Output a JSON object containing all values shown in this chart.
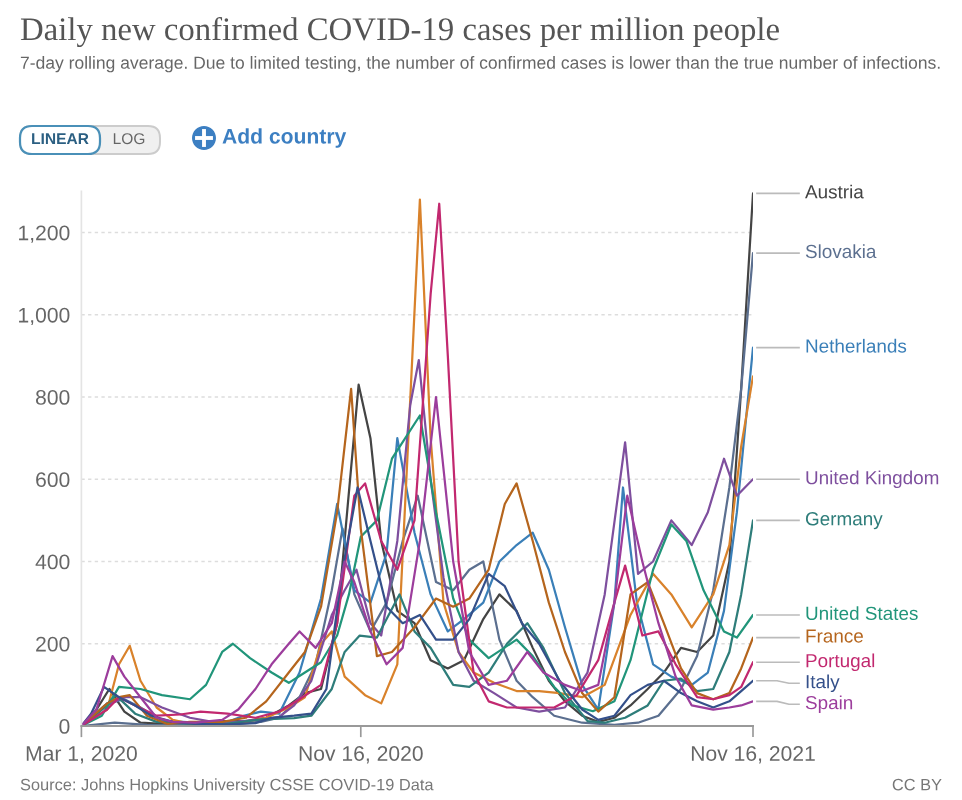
{
  "chart_data": {
    "type": "line",
    "title": "Daily new confirmed COVID-19 cases per million people",
    "subtitle": "7-day rolling average. Due to limited testing, the number of confirmed cases is lower than the true number of infections.",
    "annotations": [
      "LINEAR",
      "LOG",
      "Add country",
      "Source: Johns Hopkins University CSSE COVID-19 Data",
      "CC BY"
    ],
    "xlim": [
      "2020-03-01",
      "2021-11-16"
    ],
    "xticks": [
      {
        "value": "2020-03-01",
        "label": "Mar 1, 2020"
      },
      {
        "value": "2020-11-16",
        "label": "Nov 16, 2020"
      },
      {
        "value": "2021-11-16",
        "label": "Nov 16, 2021"
      }
    ],
    "ylim": [
      0,
      1300
    ],
    "yticks": [
      0,
      200,
      400,
      600,
      800,
      {
        "value": 1000,
        "label": "1,000"
      },
      {
        "value": 1200,
        "label": "1,200"
      }
    ],
    "grid": "y",
    "series": [
      {
        "name": "Austria",
        "color": "#444444",
        "x": [
          "2020-03-01",
          "2020-03-15",
          "2020-03-27",
          "2020-04-10",
          "2020-04-25",
          "2020-05-15",
          "2020-06-15",
          "2020-07-10",
          "2020-08-01",
          "2020-08-20",
          "2020-09-10",
          "2020-09-25",
          "2020-10-10",
          "2020-10-25",
          "2020-11-05",
          "2020-11-14",
          "2020-11-25",
          "2020-12-05",
          "2020-12-20",
          "2021-01-05",
          "2021-01-20",
          "2021-02-05",
          "2021-02-20",
          "2021-03-10",
          "2021-03-25",
          "2021-04-10",
          "2021-04-25",
          "2021-05-10",
          "2021-05-25",
          "2021-06-10",
          "2021-06-25",
          "2021-07-10",
          "2021-07-25",
          "2021-08-10",
          "2021-08-25",
          "2021-09-10",
          "2021-09-25",
          "2021-10-10",
          "2021-10-25",
          "2021-11-05",
          "2021-11-16"
        ],
        "values": [
          0,
          40,
          90,
          35,
          8,
          5,
          4,
          12,
          12,
          20,
          50,
          80,
          90,
          250,
          570,
          830,
          700,
          450,
          280,
          250,
          160,
          140,
          160,
          260,
          320,
          280,
          190,
          110,
          60,
          25,
          10,
          20,
          50,
          90,
          130,
          190,
          180,
          220,
          400,
          820,
          1295
        ]
      },
      {
        "name": "Slovakia",
        "color": "#5b6f8f",
        "x": [
          "2020-03-01",
          "2020-04-01",
          "2020-05-01",
          "2020-06-15",
          "2020-07-15",
          "2020-08-15",
          "2020-09-01",
          "2020-09-20",
          "2020-10-05",
          "2020-10-20",
          "2020-10-30",
          "2020-11-10",
          "2020-11-25",
          "2020-12-10",
          "2020-12-25",
          "2021-01-08",
          "2021-01-25",
          "2021-02-10",
          "2021-02-25",
          "2021-03-10",
          "2021-03-25",
          "2021-04-10",
          "2021-04-25",
          "2021-05-15",
          "2021-06-10",
          "2021-07-10",
          "2021-08-01",
          "2021-08-20",
          "2021-09-10",
          "2021-09-25",
          "2021-10-10",
          "2021-10-25",
          "2021-11-05",
          "2021-11-16"
        ],
        "values": [
          0,
          8,
          3,
          2,
          3,
          10,
          20,
          70,
          150,
          330,
          480,
          320,
          230,
          300,
          450,
          560,
          350,
          330,
          380,
          400,
          210,
          110,
          70,
          25,
          8,
          3,
          8,
          25,
          90,
          170,
          330,
          580,
          820,
          1150
        ]
      },
      {
        "name": "Netherlands",
        "color": "#3a7fb8",
        "x": [
          "2020-03-01",
          "2020-03-25",
          "2020-04-10",
          "2020-04-25",
          "2020-05-15",
          "2020-06-15",
          "2020-07-10",
          "2020-07-30",
          "2020-08-15",
          "2020-09-01",
          "2020-09-20",
          "2020-10-10",
          "2020-10-25",
          "2020-11-10",
          "2020-11-25",
          "2020-12-10",
          "2020-12-20",
          "2021-01-05",
          "2021-01-20",
          "2021-02-05",
          "2021-02-20",
          "2021-03-10",
          "2021-03-25",
          "2021-04-10",
          "2021-04-25",
          "2021-05-10",
          "2021-05-25",
          "2021-06-10",
          "2021-06-25",
          "2021-07-10",
          "2021-07-18",
          "2021-07-31",
          "2021-08-15",
          "2021-09-01",
          "2021-09-20",
          "2021-10-05",
          "2021-10-20",
          "2021-11-01",
          "2021-11-16"
        ],
        "values": [
          0,
          55,
          65,
          45,
          13,
          8,
          5,
          25,
          35,
          30,
          130,
          310,
          540,
          330,
          300,
          420,
          700,
          470,
          320,
          230,
          260,
          300,
          400,
          440,
          470,
          380,
          240,
          100,
          40,
          300,
          580,
          300,
          150,
          120,
          100,
          130,
          280,
          520,
          920
        ]
      },
      {
        "color": "#d9822b",
        "x": [
          "2020-03-01",
          "2020-03-25",
          "2020-04-05",
          "2020-04-15",
          "2020-04-25",
          "2020-05-10",
          "2020-05-25",
          "2020-06-15",
          "2020-07-10",
          "2020-08-01",
          "2020-08-20",
          "2020-09-10",
          "2020-09-25",
          "2020-10-10",
          "2020-10-20",
          "2020-11-01",
          "2020-11-20",
          "2020-12-05",
          "2020-12-20",
          "2021-01-03",
          "2021-01-10",
          "2021-01-20",
          "2021-02-01",
          "2021-02-15",
          "2021-03-01",
          "2021-03-20",
          "2021-04-10",
          "2021-05-01",
          "2021-05-20",
          "2021-06-10",
          "2021-07-01",
          "2021-07-25",
          "2021-08-15",
          "2021-09-01",
          "2021-09-20",
          "2021-10-10",
          "2021-10-25",
          "2021-11-05",
          "2021-11-16"
        ],
        "values": [
          0,
          40,
          150,
          195,
          110,
          45,
          15,
          3,
          4,
          10,
          20,
          45,
          70,
          200,
          230,
          120,
          75,
          55,
          150,
          900,
          1280,
          700,
          300,
          180,
          130,
          105,
          85,
          85,
          80,
          70,
          100,
          270,
          370,
          320,
          240,
          320,
          440,
          680,
          850
        ]
      },
      {
        "name": "United Kingdom",
        "color": "#7e4f9e",
        "x": [
          "2020-03-01",
          "2020-03-25",
          "2020-04-10",
          "2020-04-25",
          "2020-05-15",
          "2020-06-10",
          "2020-07-01",
          "2020-07-25",
          "2020-08-15",
          "2020-09-01",
          "2020-09-15",
          "2020-10-01",
          "2020-10-20",
          "2020-11-01",
          "2020-11-12",
          "2020-11-25",
          "2020-12-05",
          "2020-12-20",
          "2021-01-01",
          "2021-01-09",
          "2021-01-20",
          "2021-02-01",
          "2021-02-15",
          "2021-03-01",
          "2021-03-20",
          "2021-04-10",
          "2021-05-01",
          "2021-05-25",
          "2021-06-15",
          "2021-07-01",
          "2021-07-20",
          "2021-08-01",
          "2021-08-15",
          "2021-09-01",
          "2021-09-20",
          "2021-10-05",
          "2021-10-20",
          "2021-11-01",
          "2021-11-16"
        ],
        "values": [
          0,
          50,
          70,
          70,
          45,
          20,
          10,
          11,
          15,
          22,
          50,
          110,
          270,
          330,
          380,
          250,
          220,
          450,
          780,
          890,
          600,
          360,
          180,
          110,
          80,
          45,
          35,
          45,
          130,
          320,
          690,
          370,
          400,
          500,
          440,
          520,
          650,
          560,
          600
        ]
      },
      {
        "name": "Germany",
        "color": "#2e7d7a",
        "x": [
          "2020-03-01",
          "2020-03-20",
          "2020-04-02",
          "2020-04-20",
          "2020-05-10",
          "2020-06-15",
          "2020-07-15",
          "2020-08-15",
          "2020-09-15",
          "2020-10-01",
          "2020-10-20",
          "2020-11-01",
          "2020-11-15",
          "2020-12-01",
          "2020-12-22",
          "2021-01-05",
          "2021-01-20",
          "2021-02-10",
          "2021-02-25",
          "2021-03-15",
          "2021-04-01",
          "2021-04-20",
          "2021-05-05",
          "2021-05-25",
          "2021-06-15",
          "2021-07-01",
          "2021-07-20",
          "2021-08-10",
          "2021-08-25",
          "2021-09-10",
          "2021-09-25",
          "2021-10-10",
          "2021-10-25",
          "2021-11-05",
          "2021-11-16"
        ],
        "values": [
          0,
          40,
          75,
          30,
          10,
          5,
          6,
          16,
          19,
          25,
          90,
          180,
          220,
          215,
          320,
          230,
          190,
          100,
          95,
          130,
          200,
          250,
          190,
          80,
          12,
          8,
          20,
          50,
          110,
          115,
          85,
          90,
          180,
          320,
          500
        ]
      },
      {
        "name": "United States",
        "color": "#21957a",
        "x": [
          "2020-03-01",
          "2020-03-20",
          "2020-04-05",
          "2020-04-25",
          "2020-05-15",
          "2020-06-10",
          "2020-06-25",
          "2020-07-10",
          "2020-07-20",
          "2020-08-05",
          "2020-08-25",
          "2020-09-10",
          "2020-09-25",
          "2020-10-10",
          "2020-10-25",
          "2020-11-05",
          "2020-11-16",
          "2020-12-01",
          "2020-12-15",
          "2021-01-10",
          "2021-01-25",
          "2021-02-10",
          "2021-02-25",
          "2021-03-15",
          "2021-04-10",
          "2021-04-25",
          "2021-05-15",
          "2021-06-01",
          "2021-06-20",
          "2021-07-10",
          "2021-07-25",
          "2021-08-15",
          "2021-09-01",
          "2021-09-15",
          "2021-10-01",
          "2021-10-20",
          "2021-11-01",
          "2021-11-16"
        ],
        "values": [
          0,
          25,
          95,
          90,
          75,
          65,
          100,
          180,
          200,
          165,
          130,
          105,
          130,
          155,
          220,
          320,
          460,
          500,
          650,
          755,
          520,
          310,
          210,
          165,
          210,
          170,
          95,
          50,
          36,
          60,
          160,
          380,
          490,
          450,
          330,
          230,
          215,
          270
        ]
      },
      {
        "name": "France",
        "color": "#b5651d",
        "x": [
          "2020-03-01",
          "2020-03-25",
          "2020-04-05",
          "2020-04-15",
          "2020-05-01",
          "2020-05-20",
          "2020-06-10",
          "2020-07-10",
          "2020-08-01",
          "2020-08-20",
          "2020-09-10",
          "2020-09-25",
          "2020-10-10",
          "2020-10-25",
          "2020-11-07",
          "2020-11-16",
          "2020-12-01",
          "2020-12-15",
          "2021-01-05",
          "2021-01-25",
          "2021-02-10",
          "2021-02-25",
          "2021-03-15",
          "2021-03-30",
          "2021-04-10",
          "2021-04-25",
          "2021-05-10",
          "2021-05-25",
          "2021-06-10",
          "2021-06-25",
          "2021-07-10",
          "2021-07-25",
          "2021-08-10",
          "2021-08-25",
          "2021-09-10",
          "2021-09-25",
          "2021-10-10",
          "2021-10-25",
          "2021-11-05",
          "2021-11-16"
        ],
        "values": [
          0,
          55,
          70,
          75,
          25,
          5,
          10,
          10,
          20,
          60,
          130,
          180,
          290,
          520,
          820,
          480,
          170,
          180,
          240,
          310,
          290,
          310,
          380,
          540,
          590,
          450,
          300,
          180,
          80,
          35,
          70,
          320,
          350,
          250,
          140,
          80,
          65,
          80,
          140,
          215
        ]
      },
      {
        "name": "Portugal",
        "color": "#c2286f",
        "x": [
          "2020-03-01",
          "2020-03-25",
          "2020-04-05",
          "2020-04-20",
          "2020-05-10",
          "2020-06-01",
          "2020-06-20",
          "2020-07-15",
          "2020-08-10",
          "2020-09-01",
          "2020-09-20",
          "2020-10-10",
          "2020-10-25",
          "2020-11-10",
          "2020-11-20",
          "2020-12-05",
          "2020-12-20",
          "2021-01-05",
          "2021-01-20",
          "2021-01-28",
          "2021-02-05",
          "2021-02-15",
          "2021-03-01",
          "2021-03-15",
          "2021-04-01",
          "2021-04-25",
          "2021-05-15",
          "2021-06-05",
          "2021-06-25",
          "2021-07-10",
          "2021-07-20",
          "2021-08-05",
          "2021-08-20",
          "2021-09-05",
          "2021-09-25",
          "2021-10-10",
          "2021-10-25",
          "2021-11-05",
          "2021-11-16"
        ],
        "values": [
          0,
          40,
          70,
          50,
          25,
          28,
          35,
          30,
          20,
          35,
          65,
          100,
          250,
          560,
          590,
          450,
          380,
          500,
          1050,
          1270,
          900,
          400,
          130,
          60,
          45,
          45,
          45,
          75,
          160,
          300,
          390,
          220,
          230,
          150,
          70,
          65,
          75,
          95,
          155
        ]
      },
      {
        "name": "Italy",
        "color": "#34508a",
        "x": [
          "2020-03-01",
          "2020-03-10",
          "2020-03-22",
          "2020-04-05",
          "2020-04-20",
          "2020-05-05",
          "2020-05-25",
          "2020-06-15",
          "2020-07-15",
          "2020-08-10",
          "2020-08-25",
          "2020-09-15",
          "2020-10-01",
          "2020-10-15",
          "2020-10-30",
          "2020-11-13",
          "2020-11-25",
          "2020-12-10",
          "2020-12-25",
          "2021-01-10",
          "2021-01-25",
          "2021-02-10",
          "2021-02-25",
          "2021-03-15",
          "2021-03-30",
          "2021-04-15",
          "2021-05-01",
          "2021-05-20",
          "2021-06-10",
          "2021-06-25",
          "2021-07-10",
          "2021-07-25",
          "2021-08-10",
          "2021-08-25",
          "2021-09-10",
          "2021-09-25",
          "2021-10-10",
          "2021-10-25",
          "2021-11-05",
          "2021-11-16"
        ],
        "values": [
          0,
          30,
          95,
          70,
          50,
          25,
          10,
          5,
          4,
          7,
          20,
          25,
          30,
          90,
          380,
          580,
          450,
          290,
          250,
          270,
          210,
          210,
          260,
          370,
          340,
          250,
          200,
          110,
          40,
          15,
          25,
          75,
          100,
          110,
          80,
          60,
          45,
          60,
          85,
          110
        ]
      },
      {
        "name": "Spain",
        "color": "#9c3d9c",
        "x": [
          "2020-03-01",
          "2020-03-15",
          "2020-03-30",
          "2020-04-10",
          "2020-04-25",
          "2020-05-10",
          "2020-05-25",
          "2020-06-15",
          "2020-07-10",
          "2020-07-25",
          "2020-08-10",
          "2020-08-25",
          "2020-09-10",
          "2020-09-20",
          "2020-10-05",
          "2020-10-20",
          "2020-11-01",
          "2020-11-10",
          "2020-11-25",
          "2020-12-10",
          "2020-12-25",
          "2021-01-10",
          "2021-01-25",
          "2021-02-10",
          "2021-02-25",
          "2021-03-15",
          "2021-04-01",
          "2021-04-20",
          "2021-05-05",
          "2021-05-25",
          "2021-06-10",
          "2021-06-25",
          "2021-07-10",
          "2021-07-22",
          "2021-08-05",
          "2021-08-20",
          "2021-09-05",
          "2021-09-20",
          "2021-10-10",
          "2021-10-25",
          "2021-11-05",
          "2021-11-16"
        ],
        "values": [
          0,
          40,
          170,
          120,
          70,
          20,
          10,
          8,
          15,
          40,
          90,
          150,
          200,
          230,
          190,
          250,
          400,
          350,
          230,
          150,
          190,
          450,
          800,
          400,
          180,
          100,
          110,
          180,
          130,
          100,
          85,
          100,
          300,
          560,
          400,
          250,
          120,
          50,
          40,
          45,
          50,
          60
        ]
      }
    ]
  }
}
